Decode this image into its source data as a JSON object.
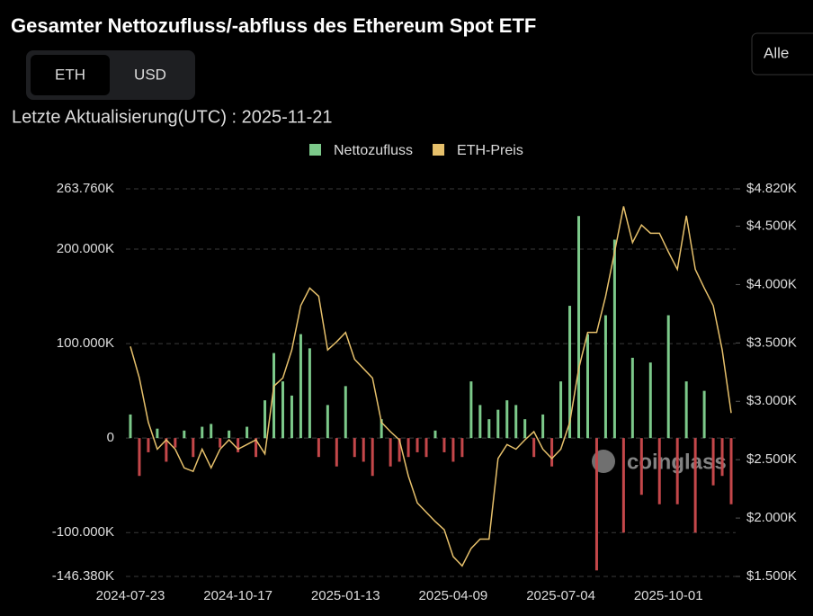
{
  "chart_data": {
    "type": "bar",
    "title": "Gesamter Nettozufluss/-abfluss des Ethereum Spot ETF",
    "subtitle": "Letzte Aktualisierung(UTC) : 2025-11-21",
    "toggle": [
      "ETH",
      "USD"
    ],
    "dropdown": "Alle",
    "watermark": "coinglass",
    "categories": [
      "2024-07-23",
      null,
      null,
      null,
      null,
      null,
      null,
      null,
      null,
      null,
      null,
      null,
      "2024-10-17",
      null,
      null,
      null,
      null,
      null,
      null,
      null,
      null,
      null,
      null,
      null,
      "2025-01-13",
      null,
      null,
      null,
      null,
      null,
      null,
      null,
      null,
      null,
      null,
      null,
      "2025-04-09",
      null,
      null,
      null,
      null,
      null,
      null,
      null,
      null,
      null,
      null,
      null,
      "2025-07-04",
      null,
      null,
      null,
      null,
      null,
      null,
      null,
      null,
      null,
      null,
      null,
      "2025-10-01",
      null,
      null,
      null,
      null,
      null,
      null,
      null
    ],
    "series": [
      {
        "name": "Nettozufluss",
        "type": "bar",
        "color": "#7cc98a",
        "negative_color": "#c4474a",
        "values": [
          25000,
          -40000,
          -15000,
          10000,
          -25000,
          -10000,
          8000,
          -20000,
          12000,
          15000,
          -10000,
          8000,
          -15000,
          12000,
          -20000,
          40000,
          90000,
          60000,
          45000,
          110000,
          95000,
          -20000,
          35000,
          -30000,
          55000,
          -20000,
          -25000,
          -40000,
          20000,
          -30000,
          -25000,
          -20000,
          -15000,
          -20000,
          8000,
          -15000,
          -25000,
          -20000,
          60000,
          35000,
          20000,
          30000,
          40000,
          35000,
          20000,
          -20000,
          25000,
          -30000,
          60000,
          140000,
          235000,
          110000,
          -140000,
          130000,
          210000,
          -100000,
          85000,
          -60000,
          80000,
          -70000,
          130000,
          -70000,
          60000,
          -100000,
          50000,
          -50000,
          -40000,
          -70000
        ]
      },
      {
        "name": "ETH-Preis",
        "type": "line",
        "axis": "y2",
        "color": "#e6c06b",
        "values": [
          3470,
          3200,
          2820,
          2590,
          2670,
          2590,
          2430,
          2400,
          2590,
          2430,
          2590,
          2670,
          2590,
          2630,
          2670,
          2550,
          3130,
          3200,
          3440,
          3820,
          3970,
          3900,
          3440,
          3510,
          3590,
          3360,
          3280,
          3200,
          2820,
          2740,
          2670,
          2360,
          2130,
          2050,
          1970,
          1900,
          1670,
          1590,
          1740,
          1820,
          1820,
          2510,
          2630,
          2590,
          2670,
          2740,
          2590,
          2510,
          2590,
          2820,
          3280,
          3590,
          3590,
          3900,
          4280,
          4670,
          4360,
          4510,
          4440,
          4440,
          4280,
          4130,
          4590,
          4130,
          3970,
          3820,
          3440,
          2900
        ]
      }
    ],
    "ylim": [
      -146380,
      263760
    ],
    "yticks": [
      {
        "value": -146380,
        "label": "-146.380K"
      },
      {
        "value": -100000,
        "label": "-100.000K"
      },
      0,
      {
        "value": 100000,
        "label": "100.000K"
      },
      {
        "value": 200000,
        "label": "200.000K"
      },
      {
        "value": 263760,
        "label": "263.760K"
      }
    ],
    "y2lim": [
      1500,
      4820
    ],
    "y2ticks": [
      {
        "value": 1500,
        "label": "$1.500K"
      },
      {
        "value": 2000,
        "label": "$2.000K"
      },
      {
        "value": 2500,
        "label": "$2.500K"
      },
      {
        "value": 3000,
        "label": "$3.000K"
      },
      {
        "value": 3500,
        "label": "$3.500K"
      },
      {
        "value": 4000,
        "label": "$4.000K"
      },
      {
        "value": 4500,
        "label": "$4.500K"
      },
      {
        "value": 4820,
        "label": "$4.820K"
      }
    ],
    "grid": true
  }
}
